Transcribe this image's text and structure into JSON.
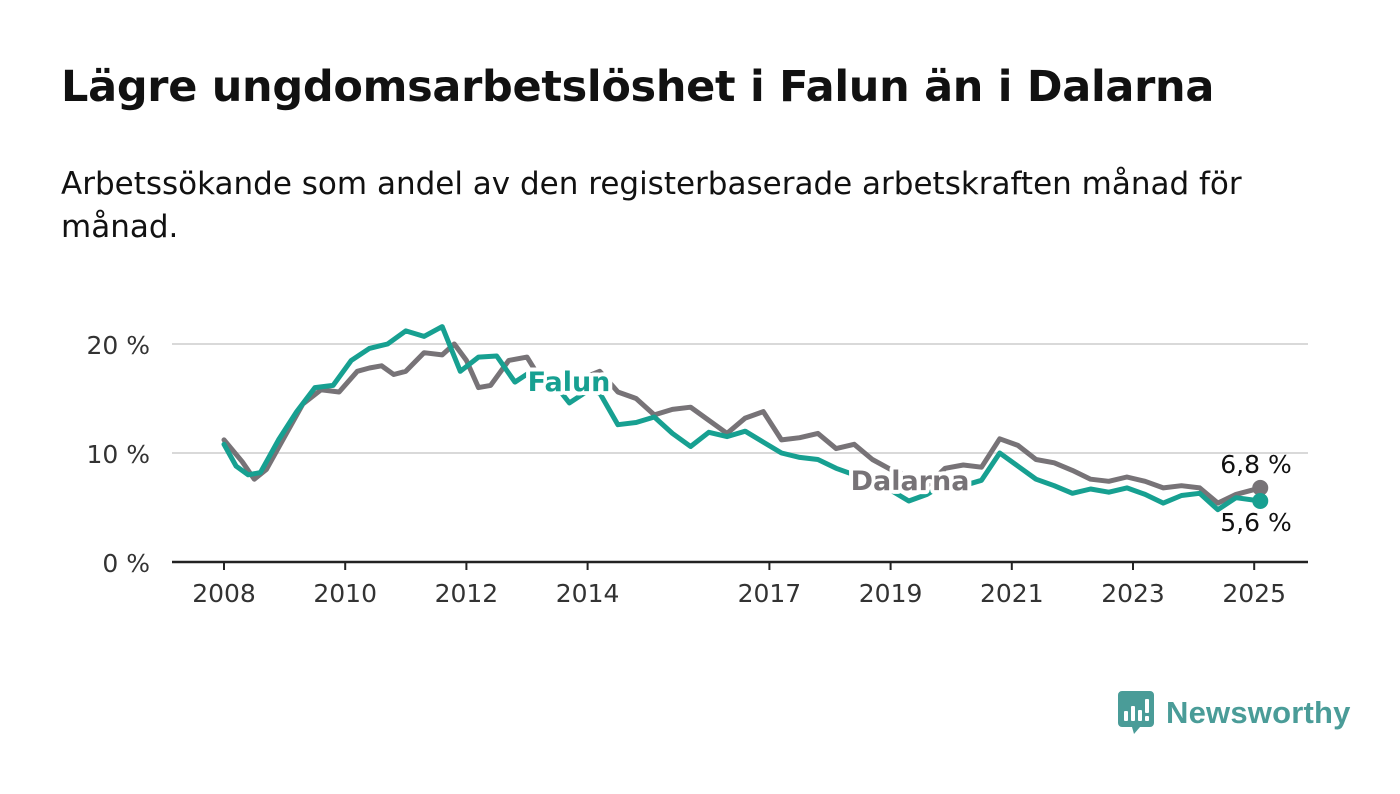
{
  "header": {
    "title": "Lägre ungdomsarbetslöshet i Falun än i Dalarna",
    "subtitle": "Arbetssökande som andel av den registerbaserade arbetskraften månad för månad."
  },
  "brand": {
    "name": "Newsworthy",
    "color": "#4a9c98"
  },
  "chart_data": {
    "type": "line",
    "x_ticks": [
      2008,
      2010,
      2012,
      2014,
      2017,
      2019,
      2021,
      2023,
      2025
    ],
    "x_range": [
      2007.2,
      2025.9
    ],
    "y_ticks": [
      0,
      10,
      20
    ],
    "y_tick_labels": [
      "0 %",
      "10 %",
      "20 %"
    ],
    "ylim": [
      0,
      20
    ],
    "grid": true,
    "series": [
      {
        "name": "Dalarna",
        "color": "#777377",
        "end_label": "6,8 %",
        "points": [
          [
            2008,
            11.2
          ],
          [
            2008.3,
            9.2
          ],
          [
            2008.5,
            7.6
          ],
          [
            2008.7,
            8.5
          ],
          [
            2009,
            11.5
          ],
          [
            2009.3,
            14.5
          ],
          [
            2009.6,
            15.8
          ],
          [
            2009.9,
            15.6
          ],
          [
            2010.2,
            17.5
          ],
          [
            2010.4,
            17.8
          ],
          [
            2010.6,
            18.0
          ],
          [
            2010.8,
            17.2
          ],
          [
            2011,
            17.5
          ],
          [
            2011.3,
            19.2
          ],
          [
            2011.6,
            19.0
          ],
          [
            2011.8,
            20.0
          ],
          [
            2012,
            18.5
          ],
          [
            2012.2,
            16.0
          ],
          [
            2012.4,
            16.2
          ],
          [
            2012.7,
            18.5
          ],
          [
            2013,
            18.8
          ],
          [
            2013.2,
            17.0
          ],
          [
            2013.5,
            15.8
          ],
          [
            2013.8,
            16.6
          ],
          [
            2014.2,
            17.5
          ],
          [
            2014.5,
            15.6
          ],
          [
            2014.8,
            15.0
          ],
          [
            2015.1,
            13.5
          ],
          [
            2015.4,
            14.0
          ],
          [
            2015.7,
            14.2
          ],
          [
            2016,
            13.0
          ],
          [
            2016.3,
            11.8
          ],
          [
            2016.6,
            13.2
          ],
          [
            2016.9,
            13.8
          ],
          [
            2017.2,
            11.2
          ],
          [
            2017.5,
            11.4
          ],
          [
            2017.8,
            11.8
          ],
          [
            2018.1,
            10.4
          ],
          [
            2018.4,
            10.8
          ],
          [
            2018.7,
            9.4
          ],
          [
            2019,
            8.5
          ],
          [
            2019.3,
            7.8
          ],
          [
            2019.6,
            7.0
          ],
          [
            2019.9,
            8.6
          ],
          [
            2020.2,
            8.9
          ],
          [
            2020.5,
            8.7
          ],
          [
            2020.8,
            11.3
          ],
          [
            2021.1,
            10.7
          ],
          [
            2021.4,
            9.4
          ],
          [
            2021.7,
            9.1
          ],
          [
            2022,
            8.4
          ],
          [
            2022.3,
            7.6
          ],
          [
            2022.6,
            7.4
          ],
          [
            2022.9,
            7.8
          ],
          [
            2023.2,
            7.4
          ],
          [
            2023.5,
            6.8
          ],
          [
            2023.8,
            7.0
          ],
          [
            2024.1,
            6.8
          ],
          [
            2024.4,
            5.4
          ],
          [
            2024.7,
            6.2
          ],
          [
            2025.1,
            6.8
          ]
        ]
      },
      {
        "name": "Falun",
        "color": "#17a091",
        "end_label": "5,6 %",
        "points": [
          [
            2008,
            10.8
          ],
          [
            2008.2,
            8.8
          ],
          [
            2008.4,
            8.0
          ],
          [
            2008.6,
            8.2
          ],
          [
            2008.9,
            11.2
          ],
          [
            2009.2,
            13.8
          ],
          [
            2009.5,
            16.0
          ],
          [
            2009.8,
            16.2
          ],
          [
            2010.1,
            18.5
          ],
          [
            2010.4,
            19.6
          ],
          [
            2010.7,
            20.0
          ],
          [
            2011,
            21.2
          ],
          [
            2011.3,
            20.7
          ],
          [
            2011.6,
            21.6
          ],
          [
            2011.9,
            17.5
          ],
          [
            2012.2,
            18.8
          ],
          [
            2012.5,
            18.9
          ],
          [
            2012.8,
            16.5
          ],
          [
            2013.1,
            17.6
          ],
          [
            2013.4,
            16.7
          ],
          [
            2013.7,
            14.6
          ],
          [
            2014,
            15.7
          ],
          [
            2014.2,
            15.5
          ],
          [
            2014.5,
            12.6
          ],
          [
            2014.8,
            12.8
          ],
          [
            2015.1,
            13.3
          ],
          [
            2015.4,
            11.8
          ],
          [
            2015.7,
            10.6
          ],
          [
            2016,
            11.9
          ],
          [
            2016.3,
            11.5
          ],
          [
            2016.6,
            12.0
          ],
          [
            2016.9,
            11.0
          ],
          [
            2017.2,
            10.0
          ],
          [
            2017.5,
            9.6
          ],
          [
            2017.8,
            9.4
          ],
          [
            2018.1,
            8.6
          ],
          [
            2018.4,
            8.0
          ],
          [
            2018.7,
            7.6
          ],
          [
            2019,
            6.6
          ],
          [
            2019.3,
            5.6
          ],
          [
            2019.6,
            6.2
          ],
          [
            2019.9,
            7.2
          ],
          [
            2020.2,
            7.0
          ],
          [
            2020.5,
            7.5
          ],
          [
            2020.8,
            10.0
          ],
          [
            2021.1,
            8.8
          ],
          [
            2021.4,
            7.6
          ],
          [
            2021.7,
            7.0
          ],
          [
            2022,
            6.3
          ],
          [
            2022.3,
            6.7
          ],
          [
            2022.6,
            6.4
          ],
          [
            2022.9,
            6.8
          ],
          [
            2023.2,
            6.2
          ],
          [
            2023.5,
            5.4
          ],
          [
            2023.8,
            6.1
          ],
          [
            2024.1,
            6.3
          ],
          [
            2024.4,
            4.8
          ],
          [
            2024.7,
            5.9
          ],
          [
            2025.1,
            5.6
          ]
        ]
      }
    ]
  }
}
